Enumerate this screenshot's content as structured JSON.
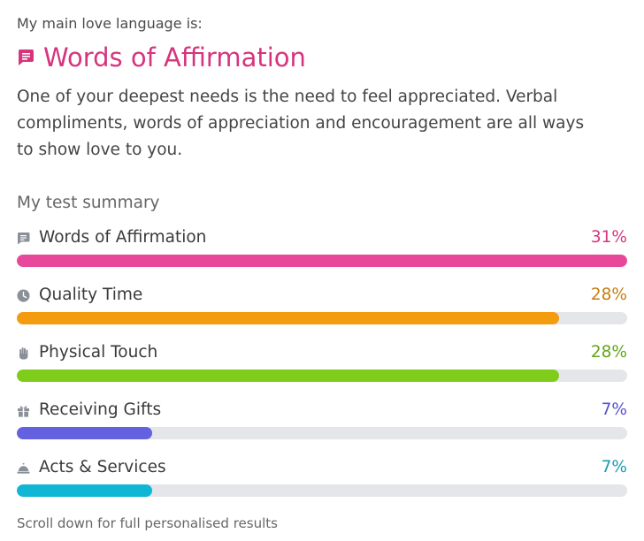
{
  "intro_label": "My main love language is:",
  "main": {
    "title": "Words of Affirmation",
    "icon": "chat-icon",
    "color": "#d6357e",
    "description": "One of your deepest needs is the need to feel appreciated. Verbal compliments, words of appreciation and encouragement are all ways to show love to you."
  },
  "summary": {
    "title": "My test summary",
    "items": [
      {
        "label": "Words of Affirmation",
        "percent_text": "31%",
        "fill_fraction": 1.0,
        "color": "#e8489a",
        "text_color": "#d6357e",
        "icon": "chat-icon"
      },
      {
        "label": "Quality Time",
        "percent_text": "28%",
        "fill_fraction": 0.888,
        "color": "#f39c0f",
        "text_color": "#c67d10",
        "icon": "clock-icon"
      },
      {
        "label": "Physical Touch",
        "percent_text": "28%",
        "fill_fraction": 0.888,
        "color": "#80cc1a",
        "text_color": "#63a51a",
        "icon": "hand-icon"
      },
      {
        "label": "Receiving Gifts",
        "percent_text": "7%",
        "fill_fraction": 0.222,
        "color": "#6361e0",
        "text_color": "#5552d0",
        "icon": "gift-icon"
      },
      {
        "label": "Acts & Services",
        "percent_text": "7%",
        "fill_fraction": 0.222,
        "color": "#0fb7d4",
        "text_color": "#1a9bb3",
        "icon": "service-bell-icon"
      }
    ]
  },
  "footer_note": "Scroll down for full personalised results"
}
